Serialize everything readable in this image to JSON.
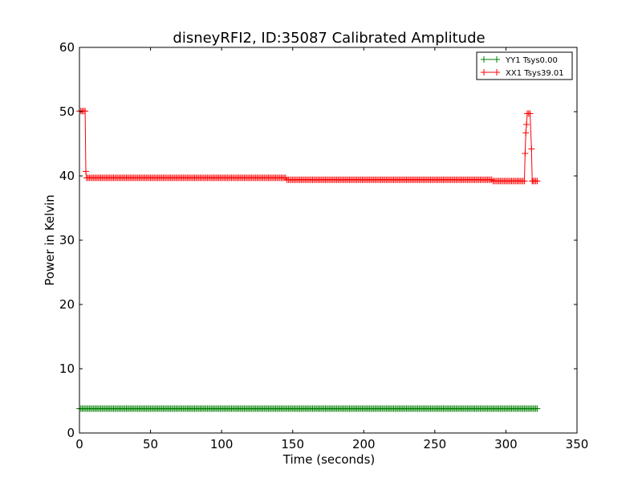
{
  "chart_data": {
    "type": "line",
    "title": "disneyRFI2, ID:35087 Calibrated Amplitude",
    "xlabel": "Time (seconds)",
    "ylabel": "Power in Kelvin",
    "xlim": [
      0,
      350
    ],
    "ylim": [
      0,
      60
    ],
    "xticks": [
      "0",
      "50",
      "100",
      "150",
      "200",
      "250",
      "300",
      "350"
    ],
    "yticks": [
      "0",
      "10",
      "20",
      "30",
      "40",
      "50",
      "60"
    ],
    "grid": false,
    "legend_position": "top-right",
    "sample_step_seconds": 1,
    "series": [
      {
        "name": "YY1 Tsys0.00",
        "color": "#008000",
        "marker": "+",
        "segments": [
          {
            "x_from": 0,
            "x_to": 322,
            "y": 3.8
          }
        ],
        "points": []
      },
      {
        "name": "XX1 Tsys39.01",
        "color": "#ff0000",
        "marker": "+",
        "segments": [
          {
            "x_from": 0,
            "x_to": 4,
            "y": 50.1
          },
          {
            "x_from": 5,
            "x_to": 145,
            "y": 39.7
          },
          {
            "x_from": 146,
            "x_to": 290,
            "y": 39.4
          },
          {
            "x_from": 291,
            "x_to": 313,
            "y": 39.2
          }
        ],
        "points": [
          [
            4.5,
            40.7
          ],
          [
            313.5,
            43.5
          ],
          [
            314,
            46.7
          ],
          [
            314.5,
            48.0
          ],
          [
            315,
            49.7
          ],
          [
            316,
            49.7
          ],
          [
            317,
            49.7
          ],
          [
            318,
            44.2
          ],
          [
            318.5,
            39.2
          ],
          [
            319,
            39.2
          ],
          [
            320,
            39.2
          ],
          [
            321,
            39.2
          ],
          [
            322,
            39.2
          ]
        ]
      }
    ]
  }
}
